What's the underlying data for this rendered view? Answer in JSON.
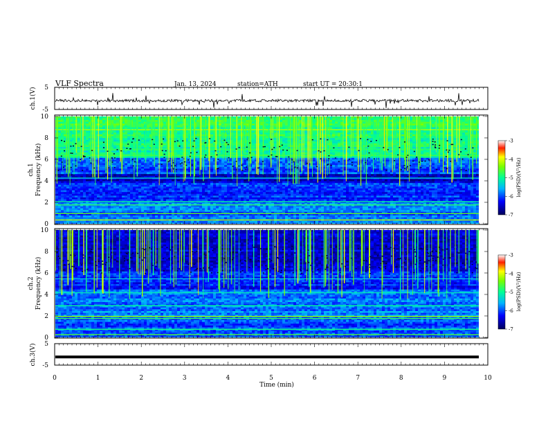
{
  "header": {
    "title": "VLF Spectra",
    "date": "Jan. 13, 2024",
    "station": "station=ATH",
    "start_ut": "start UT =  20:30:1"
  },
  "chart_data": [
    {
      "type": "line",
      "ylabel": "ch.1(V)",
      "ylim": [
        -5,
        5
      ],
      "yticks": [
        "5",
        "-5"
      ],
      "description_level": "waveform near 0 V with spikes"
    },
    {
      "type": "heatmap",
      "ylabel": "ch.1\nFrequency (kHz)",
      "ylabel_line1": "ch.1",
      "ylabel_line2": "Frequency (kHz)",
      "ylim": [
        0,
        10
      ],
      "yticks": [
        "0",
        "2",
        "4",
        "6",
        "8",
        "10"
      ],
      "colorbar": {
        "label": "log(PSD)(V²/Hz)",
        "ticks": [
          "-3",
          "-4",
          "-5",
          "-6",
          "-7"
        ],
        "range": [
          -7,
          -3
        ]
      }
    },
    {
      "type": "heatmap",
      "ylabel": "ch.2\nFrequency (kHz)",
      "ylabel_line1": "ch.2",
      "ylabel_line2": "Frequency (kHz)",
      "ylim": [
        0,
        10
      ],
      "yticks": [
        "0",
        "2",
        "4",
        "6",
        "8",
        "10"
      ],
      "colorbar": {
        "label": "log(PSD)(V²/Hz)",
        "ticks": [
          "-3",
          "-4",
          "-5",
          "-6",
          "-7"
        ],
        "range": [
          -7,
          -3
        ]
      }
    },
    {
      "type": "line",
      "ylabel": "ch.3(V)",
      "ylim": [
        -5,
        5
      ],
      "yticks": [
        "5",
        "-5"
      ],
      "level": -1.2
    }
  ],
  "xaxis": {
    "label": "Time (min)",
    "xlim": [
      0,
      10
    ],
    "ticks": [
      "0",
      "1",
      "2",
      "3",
      "4",
      "5",
      "6",
      "7",
      "8",
      "9",
      "10"
    ]
  }
}
